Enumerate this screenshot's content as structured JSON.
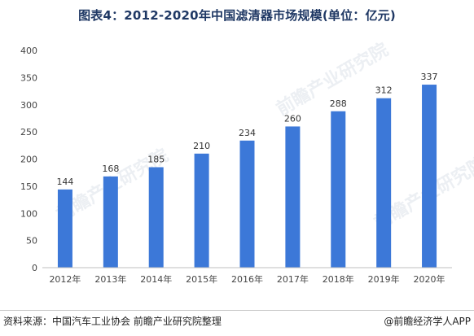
{
  "header": {
    "title": "图表4：2012-2020年中国滤清器市场规模(单位：亿元)"
  },
  "footer": {
    "source": "资料来源：中国汽车工业协会 前瞻产业研究院整理",
    "brand": "@前瞻经济学人APP"
  },
  "watermarks": [
    "前瞻产业研究院",
    "前瞻产业研究院",
    "前瞻产业研究院"
  ],
  "colors": {
    "bar": "#3c78d8",
    "axis": "#bfbfbf",
    "title": "#1f3864"
  },
  "chart_data": {
    "type": "bar",
    "title": "图表4：2012-2020年中国滤清器市场规模(单位：亿元)",
    "categories": [
      "2012年",
      "2013年",
      "2014年",
      "2015年",
      "2016年",
      "2017年",
      "2018年",
      "2019年",
      "2020年"
    ],
    "values": [
      144,
      168,
      185,
      210,
      234,
      260,
      288,
      312,
      337
    ],
    "ylim": [
      0,
      400
    ],
    "yticks": [
      0,
      50,
      100,
      150,
      200,
      250,
      300,
      350,
      400
    ],
    "grid": false,
    "legend": "none"
  }
}
